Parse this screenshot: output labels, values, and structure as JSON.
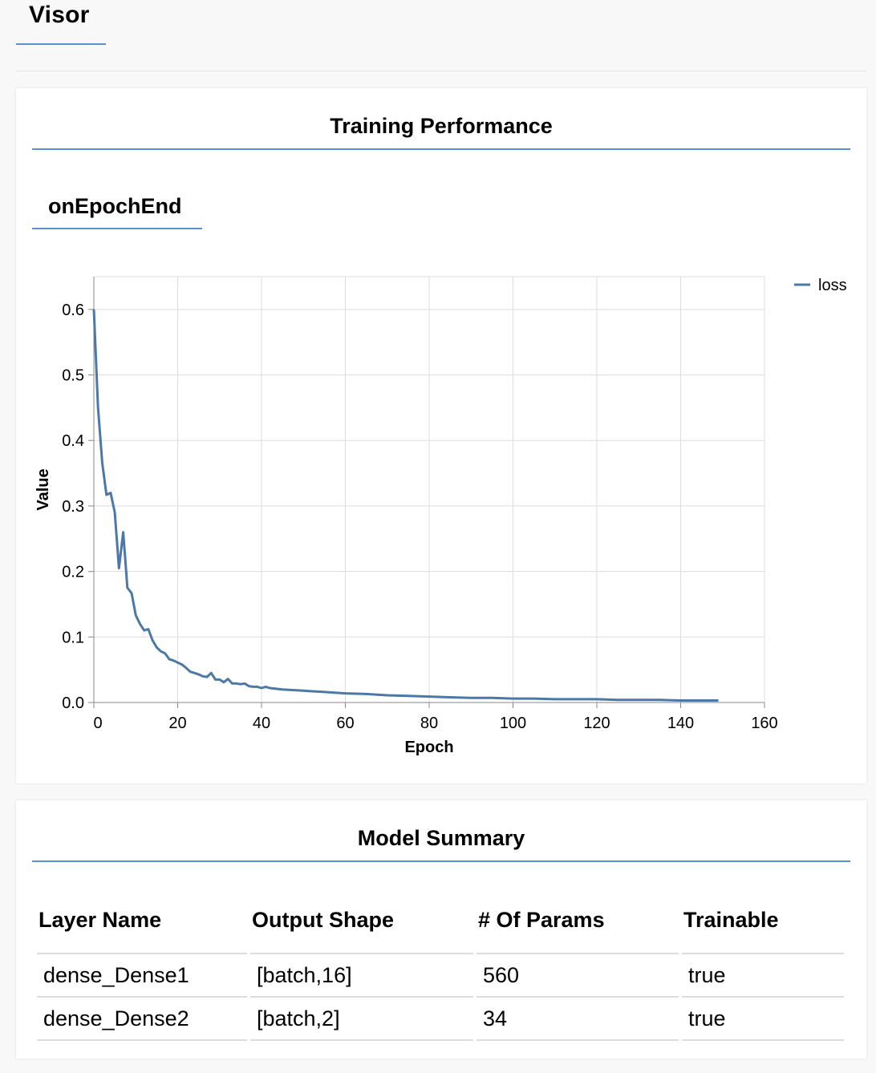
{
  "app": {
    "title": "Visor"
  },
  "training": {
    "title": "Training Performance",
    "tab_label": "onEpochEnd"
  },
  "summary": {
    "title": "Model Summary",
    "headers": [
      "Layer Name",
      "Output Shape",
      "# Of Params",
      "Trainable"
    ],
    "rows": [
      [
        "dense_Dense1",
        "[batch,16]",
        "560",
        "true"
      ],
      [
        "dense_Dense2",
        "[batch,2]",
        "34",
        "true"
      ]
    ]
  },
  "colors": {
    "accent": "#5b8fd6",
    "series": "#4c78a8"
  },
  "chart_data": {
    "type": "line",
    "title": "",
    "xlabel": "Epoch",
    "ylabel": "Value",
    "xlim": [
      0,
      160
    ],
    "ylim": [
      0,
      0.65
    ],
    "x_ticks": [
      "0",
      "20",
      "40",
      "60",
      "80",
      "100",
      "120",
      "140",
      "160"
    ],
    "y_ticks": [
      "0.0",
      "0.1",
      "0.2",
      "0.3",
      "0.4",
      "0.5",
      "0.6"
    ],
    "grid": true,
    "legend_position": "top-right",
    "series": [
      {
        "name": "loss",
        "x": [
          0,
          1,
          2,
          3,
          4,
          5,
          6,
          7,
          8,
          9,
          10,
          11,
          12,
          13,
          14,
          15,
          16,
          17,
          18,
          19,
          20,
          21,
          22,
          23,
          24,
          25,
          26,
          27,
          28,
          29,
          30,
          31,
          32,
          33,
          34,
          35,
          36,
          37,
          38,
          39,
          40,
          41,
          42,
          45,
          50,
          55,
          60,
          65,
          70,
          75,
          80,
          85,
          90,
          95,
          100,
          105,
          110,
          115,
          120,
          125,
          130,
          135,
          140,
          145,
          149
        ],
        "y": [
          0.6,
          0.45,
          0.365,
          0.317,
          0.32,
          0.29,
          0.205,
          0.26,
          0.175,
          0.167,
          0.133,
          0.12,
          0.11,
          0.112,
          0.095,
          0.084,
          0.078,
          0.075,
          0.066,
          0.064,
          0.061,
          0.058,
          0.053,
          0.047,
          0.045,
          0.043,
          0.04,
          0.039,
          0.045,
          0.035,
          0.035,
          0.031,
          0.036,
          0.029,
          0.029,
          0.028,
          0.029,
          0.025,
          0.024,
          0.024,
          0.022,
          0.024,
          0.022,
          0.02,
          0.018,
          0.016,
          0.014,
          0.013,
          0.011,
          0.01,
          0.009,
          0.008,
          0.007,
          0.007,
          0.006,
          0.006,
          0.005,
          0.005,
          0.005,
          0.004,
          0.004,
          0.004,
          0.003,
          0.003,
          0.003
        ]
      }
    ]
  }
}
